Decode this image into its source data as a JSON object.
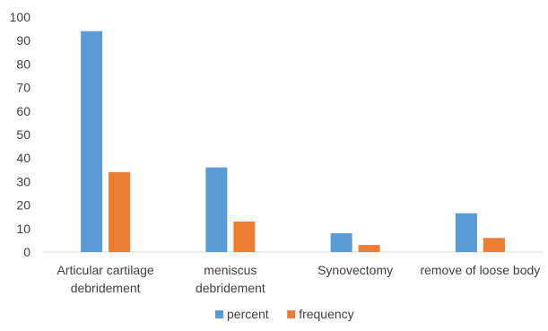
{
  "chart_data": {
    "type": "bar",
    "title": "",
    "xlabel": "",
    "ylabel": "",
    "ylim": [
      0,
      100
    ],
    "yticks": [
      0,
      10,
      20,
      30,
      40,
      50,
      60,
      70,
      80,
      90,
      100
    ],
    "grid": false,
    "legend_position": "bottom",
    "categories": [
      [
        "Articular cartilage",
        "debridement"
      ],
      [
        "meniscus",
        "debridement"
      ],
      [
        "Synovectomy"
      ],
      [
        "remove of loose body"
      ]
    ],
    "series": [
      {
        "name": "percent",
        "color": "#5B9BD5",
        "values": [
          94,
          36,
          8,
          16.5
        ]
      },
      {
        "name": "frequency",
        "color": "#ED7D31",
        "values": [
          34,
          13,
          3,
          6
        ]
      }
    ]
  }
}
